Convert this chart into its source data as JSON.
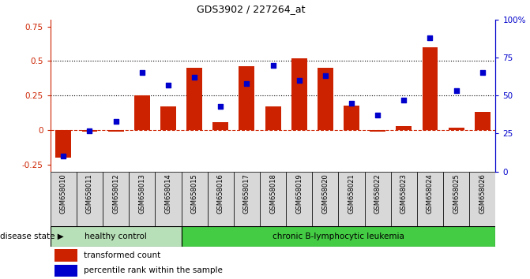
{
  "title": "GDS3902 / 227264_at",
  "samples": [
    "GSM658010",
    "GSM658011",
    "GSM658012",
    "GSM658013",
    "GSM658014",
    "GSM658015",
    "GSM658016",
    "GSM658017",
    "GSM658018",
    "GSM658019",
    "GSM658020",
    "GSM658021",
    "GSM658022",
    "GSM658023",
    "GSM658024",
    "GSM658025",
    "GSM658026"
  ],
  "bar_values": [
    -0.2,
    -0.01,
    -0.01,
    0.25,
    0.17,
    0.45,
    0.06,
    0.46,
    0.17,
    0.52,
    0.45,
    0.18,
    -0.01,
    0.03,
    0.6,
    0.02,
    0.13
  ],
  "dot_pct": [
    10,
    27,
    33,
    65,
    57,
    62,
    43,
    58,
    70,
    60,
    63,
    45,
    37,
    47,
    88,
    53,
    65
  ],
  "ylim_left": [
    -0.3,
    0.8
  ],
  "ylim_right": [
    0,
    100
  ],
  "yticks_left": [
    -0.25,
    0.0,
    0.25,
    0.5,
    0.75
  ],
  "yticks_right": [
    0,
    25,
    50,
    75,
    100
  ],
  "bar_color": "#cc2200",
  "dot_color": "#0000cc",
  "healthy_label": "healthy control",
  "leukemia_label": "chronic B-lymphocytic leukemia",
  "healthy_count": 5,
  "disease_state_label": "disease state",
  "legend_bar": "transformed count",
  "legend_dot": "percentile rank within the sample",
  "healthy_color": "#b8e0b8",
  "leukemia_color": "#44cc44",
  "cell_bg": "#d8d8d8"
}
